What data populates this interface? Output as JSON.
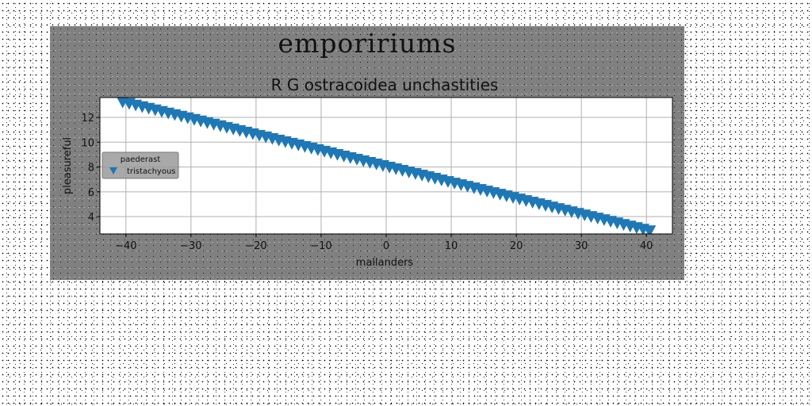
{
  "figure_title": "empoririums",
  "chart_data": {
    "type": "scatter",
    "title": "R G ostracoidea unchastities",
    "xlabel": "mallanders",
    "ylabel": "pleasureful",
    "xlim": [
      -44,
      44
    ],
    "ylim": [
      2.6,
      13.6
    ],
    "xticks": [
      -40,
      -30,
      -20,
      -10,
      0,
      10,
      20,
      30,
      40
    ],
    "xtick_labels": [
      "−40",
      "−30",
      "−20",
      "−10",
      "0",
      "10",
      "20",
      "30",
      "40"
    ],
    "yticks": [
      4,
      6,
      8,
      10,
      12
    ],
    "ytick_labels": [
      "4",
      "6",
      "8",
      "10",
      "12"
    ],
    "grid": true,
    "legend": {
      "title": "paederast",
      "placement": "center-left"
    },
    "series": [
      {
        "name": "tristachyous",
        "marker": "triangle-down",
        "color": "#1f77b4",
        "x_start": -40.5,
        "x_end": 40.5,
        "n_points": 82,
        "y_start": 13.3,
        "y_end": 2.9
      }
    ]
  }
}
